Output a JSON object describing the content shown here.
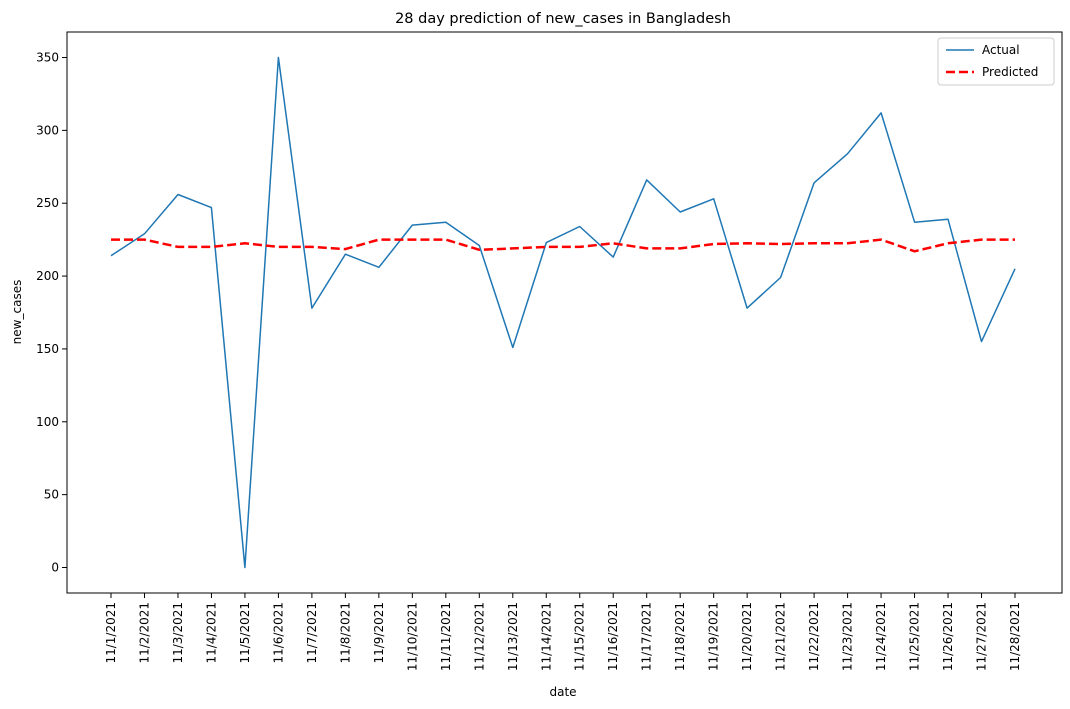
{
  "chart_data": {
    "type": "line",
    "title": "28 day prediction of new_cases in Bangladesh",
    "xlabel": "date",
    "ylabel": "new_cases",
    "categories": [
      "11/1/2021",
      "11/2/2021",
      "11/3/2021",
      "11/4/2021",
      "11/5/2021",
      "11/6/2021",
      "11/7/2021",
      "11/8/2021",
      "11/9/2021",
      "11/10/2021",
      "11/11/2021",
      "11/12/2021",
      "11/13/2021",
      "11/14/2021",
      "11/15/2021",
      "11/16/2021",
      "11/17/2021",
      "11/18/2021",
      "11/19/2021",
      "11/20/2021",
      "11/21/2021",
      "11/22/2021",
      "11/23/2021",
      "11/24/2021",
      "11/25/2021",
      "11/26/2021",
      "11/27/2021",
      "11/28/2021"
    ],
    "yticks": [
      0,
      50,
      100,
      150,
      200,
      250,
      300,
      350
    ],
    "ylim": [
      -17.5,
      367.5
    ],
    "grid": false,
    "legend_position": "top-right",
    "series": [
      {
        "name": "Actual",
        "color": "#1f77b4",
        "style": "solid",
        "values": [
          214,
          229,
          256,
          247,
          0,
          350,
          178,
          215,
          206,
          235,
          237,
          221,
          151,
          223,
          234,
          213,
          266,
          244,
          253,
          178,
          199,
          264,
          284,
          312,
          237,
          239,
          155,
          205
        ]
      },
      {
        "name": "Predicted",
        "color": "#ff0000",
        "style": "dashed",
        "values": [
          225,
          225,
          220,
          220,
          222.5,
          220,
          220,
          218.5,
          225,
          225,
          225,
          218,
          219,
          220,
          220,
          222.5,
          219,
          219,
          222,
          222.5,
          222,
          222.5,
          222.5,
          225,
          217,
          222.5,
          225,
          225
        ]
      }
    ]
  }
}
